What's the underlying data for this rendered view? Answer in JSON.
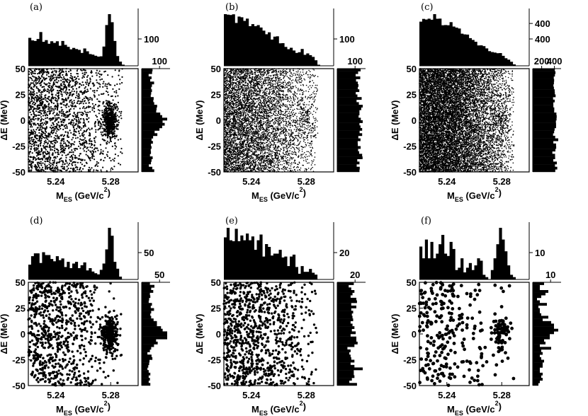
{
  "chart_data": [
    {
      "panel": "(a)",
      "type": "scatter",
      "xlabel": "M",
      "xlabel_sub": "ES",
      "xlabel_unit": "(GeV/c",
      "xlabel_unit_sup": "2",
      "xlabel_close": ")",
      "ylabel": "ΔE (MeV)",
      "xlim": [
        5.22,
        5.3
      ],
      "ylim": [
        -50,
        50
      ],
      "x_ticks": [
        "5.24",
        "5.28"
      ],
      "y_ticks": [
        "50",
        "25",
        "0",
        "-25",
        "-50"
      ],
      "top_hist_tick": "100",
      "right_hist_tick": "100",
      "points": 2600,
      "signal_fraction": 0.22,
      "dot_size": 1.1,
      "top_hist_max": 150,
      "right_hist_max": 140
    },
    {
      "panel": "(b)",
      "type": "scatter",
      "xlabel": "M",
      "xlabel_sub": "ES",
      "xlabel_unit": "(GeV/c",
      "xlabel_unit_sup": "2",
      "xlabel_close": ")",
      "ylabel": "ΔE (MeV)",
      "xlim": [
        5.22,
        5.3
      ],
      "ylim": [
        -50,
        50
      ],
      "x_ticks": [
        "5.24",
        "5.28"
      ],
      "y_ticks": [
        "50",
        "25",
        "0",
        "-25",
        "-50"
      ],
      "top_hist_tick": "100",
      "right_hist_tick": "100",
      "points": 6000,
      "signal_fraction": 0.02,
      "dot_size": 0.8,
      "top_hist_max": 160,
      "right_hist_max": 160
    },
    {
      "panel": "(c)",
      "type": "scatter",
      "xlabel": "M",
      "xlabel_sub": "ES",
      "xlabel_unit": "(GeV/c",
      "xlabel_unit_sup": "2",
      "xlabel_close": ")",
      "ylabel": "ΔE (MeV)",
      "xlim": [
        5.22,
        5.3
      ],
      "ylim": [
        -50,
        50
      ],
      "x_ticks": [
        "5.24",
        "5.28"
      ],
      "y_ticks": [
        "50",
        "25",
        "0",
        "-25",
        "-50"
      ],
      "top_hist_tick": "400",
      "top_hist_tick2": "200",
      "right_hist_tick": "200",
      "right_hist_tick2": "400",
      "points": 12000,
      "signal_fraction": 0.01,
      "dot_size": 0.8,
      "top_hist_max": 500,
      "right_hist_max": 500
    },
    {
      "panel": "(d)",
      "type": "scatter",
      "xlabel": "M",
      "xlabel_sub": "ES",
      "xlabel_unit": "(GeV/c",
      "xlabel_unit_sup": "2",
      "xlabel_close": ")",
      "ylabel": "ΔE (MeV)",
      "xlim": [
        5.22,
        5.3
      ],
      "ylim": [
        -50,
        50
      ],
      "x_ticks": [
        "5.24",
        "5.28"
      ],
      "y_ticks": [
        "50",
        "25",
        "0",
        "-25",
        "-50"
      ],
      "top_hist_tick": "50",
      "right_hist_tick": "50",
      "points": 1100,
      "signal_fraction": 0.25,
      "dot_size": 1.7,
      "top_hist_max": 80,
      "right_hist_max": 70
    },
    {
      "panel": "(e)",
      "type": "scatter",
      "xlabel": "M",
      "xlabel_sub": "ES",
      "xlabel_unit": "(GeV/c",
      "xlabel_unit_sup": "2",
      "xlabel_close": ")",
      "ylabel": "ΔE (MeV)",
      "xlim": [
        5.22,
        5.3
      ],
      "ylim": [
        -50,
        50
      ],
      "x_ticks": [
        "5.24",
        "5.28"
      ],
      "y_ticks": [
        "50",
        "25",
        "0",
        "-25",
        "-50"
      ],
      "top_hist_tick": "20",
      "right_hist_tick": "20",
      "points": 1000,
      "signal_fraction": 0.0,
      "dot_size": 1.7,
      "top_hist_max": 32,
      "right_hist_max": 32
    },
    {
      "panel": "(f)",
      "type": "scatter",
      "xlabel": "M",
      "xlabel_sub": "ES",
      "xlabel_unit": "(GeV/c",
      "xlabel_unit_sup": "2",
      "xlabel_close": ")",
      "ylabel": "ΔE (MeV)",
      "xlim": [
        5.22,
        5.3
      ],
      "ylim": [
        -50,
        50
      ],
      "x_ticks": [
        "5.24",
        "5.28"
      ],
      "y_ticks": [
        "50",
        "25",
        "0",
        "-25",
        "-50"
      ],
      "top_hist_tick": "10",
      "right_hist_tick": "10",
      "points": 320,
      "signal_fraction": 0.22,
      "dot_size": 2.4,
      "top_hist_max": 16,
      "right_hist_max": 16
    }
  ]
}
